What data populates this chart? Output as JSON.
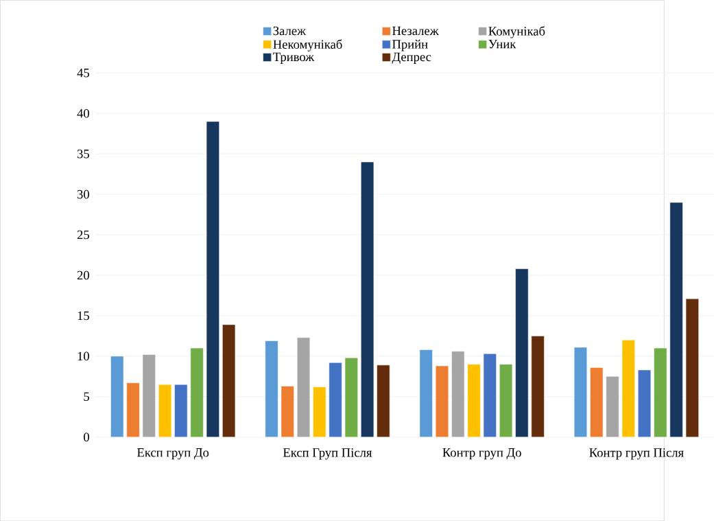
{
  "chart_data": {
    "type": "bar",
    "categories": [
      "Експ груп До",
      "Експ Груп Після",
      "Контр груп До",
      "Контр груп Після"
    ],
    "series": [
      {
        "name": "Залеж",
        "color": "#5b9bd5",
        "values": [
          10,
          11.9,
          10.8,
          11.1
        ]
      },
      {
        "name": "Незалеж",
        "color": "#ed7d31",
        "values": [
          6.7,
          6.3,
          8.8,
          8.6
        ]
      },
      {
        "name": "Комунікаб",
        "color": "#a5a5a5",
        "values": [
          10.2,
          12.3,
          10.6,
          7.5
        ]
      },
      {
        "name": "Некомунікаб",
        "color": "#ffc000",
        "values": [
          6.5,
          6.2,
          9,
          12
        ]
      },
      {
        "name": "Прийн",
        "color": "#4472c4",
        "values": [
          6.5,
          9.2,
          10.3,
          8.3
        ]
      },
      {
        "name": "Уник",
        "color": "#70ad47",
        "values": [
          11,
          9.8,
          9,
          11
        ]
      },
      {
        "name": "Тривож",
        "color": "#17375e",
        "values": [
          39,
          34,
          20.8,
          29
        ]
      },
      {
        "name": "Депрес",
        "color": "#632c0b",
        "values": [
          13.9,
          8.9,
          12.5,
          17.1
        ]
      }
    ],
    "ylim": [
      0,
      45
    ],
    "yticks": [
      0,
      5,
      10,
      15,
      20,
      25,
      30,
      35,
      40,
      45
    ],
    "grid": "y",
    "legend": "top"
  }
}
